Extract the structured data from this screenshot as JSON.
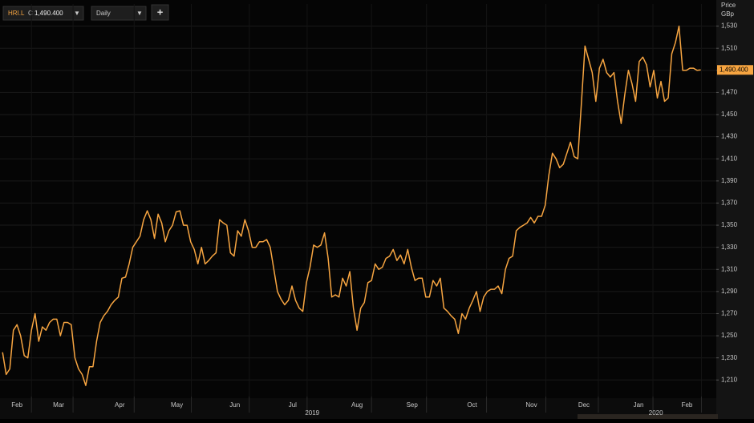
{
  "header": {
    "symbol": "HRI.L",
    "close_prefix": "C",
    "close": "1,490.400",
    "interval": "Daily",
    "add": "+"
  },
  "chart_data": {
    "type": "line",
    "axis_title": [
      "Price",
      "GBp"
    ],
    "color": "#f7a541",
    "values": [
      1235,
      1215,
      1220,
      1255,
      1260,
      1250,
      1232,
      1230,
      1255,
      1270,
      1245,
      1258,
      1255,
      1262,
      1265,
      1265,
      1250,
      1262,
      1262,
      1260,
      1230,
      1220,
      1215,
      1205,
      1222,
      1222,
      1245,
      1262,
      1268,
      1272,
      1278,
      1282,
      1285,
      1302,
      1303,
      1315,
      1330,
      1335,
      1340,
      1355,
      1363,
      1355,
      1338,
      1360,
      1352,
      1335,
      1345,
      1350,
      1362,
      1363,
      1350,
      1350,
      1335,
      1328,
      1315,
      1330,
      1315,
      1318,
      1322,
      1325,
      1355,
      1352,
      1350,
      1325,
      1322,
      1345,
      1340,
      1355,
      1345,
      1330,
      1330,
      1335,
      1335,
      1337,
      1330,
      1310,
      1290,
      1283,
      1278,
      1282,
      1295,
      1282,
      1275,
      1272,
      1298,
      1312,
      1332,
      1330,
      1332,
      1343,
      1320,
      1285,
      1287,
      1285,
      1302,
      1295,
      1308,
      1275,
      1255,
      1275,
      1280,
      1298,
      1300,
      1315,
      1310,
      1312,
      1320,
      1322,
      1328,
      1318,
      1323,
      1315,
      1328,
      1312,
      1300,
      1302,
      1302,
      1285,
      1285,
      1300,
      1295,
      1302,
      1275,
      1272,
      1268,
      1265,
      1252,
      1270,
      1265,
      1275,
      1282,
      1290,
      1272,
      1285,
      1290,
      1292,
      1292,
      1295,
      1288,
      1310,
      1320,
      1322,
      1345,
      1348,
      1350,
      1352,
      1357,
      1352,
      1358,
      1358,
      1368,
      1395,
      1415,
      1410,
      1402,
      1405,
      1415,
      1425,
      1412,
      1410,
      1460,
      1512,
      1500,
      1488,
      1462,
      1492,
      1500,
      1488,
      1484,
      1488,
      1462,
      1442,
      1468,
      1490,
      1478,
      1462,
      1498,
      1502,
      1495,
      1475,
      1490,
      1465,
      1480,
      1462,
      1465,
      1505,
      1515,
      1530,
      1490,
      1490,
      1492,
      1492,
      1490,
      1490.4
    ],
    "xlim": [
      -0.7,
      197.3
    ],
    "xticks": [
      {
        "value": 4,
        "label": "Feb"
      },
      {
        "value": 15.5,
        "label": "Mar"
      },
      {
        "value": 32.4,
        "label": "Apr"
      },
      {
        "value": 48.2,
        "label": "May"
      },
      {
        "value": 64.2,
        "label": "Jun"
      },
      {
        "value": 80.2,
        "label": "Jul"
      },
      {
        "value": 98,
        "label": "Aug"
      },
      {
        "value": 113.2,
        "label": "Sep"
      },
      {
        "value": 129.8,
        "label": "Oct"
      },
      {
        "value": 146.2,
        "label": "Nov"
      },
      {
        "value": 160.7,
        "label": "Dec"
      },
      {
        "value": 175.8,
        "label": "Jan"
      },
      {
        "value": 189.2,
        "label": "Feb"
      }
    ],
    "year_labels": [
      {
        "value": 85.6,
        "label": "2019"
      },
      {
        "value": 180.6,
        "label": "2020"
      }
    ],
    "ylim": [
      1195,
      1550
    ],
    "yticks": [
      {
        "value": 1210,
        "label": "1,210"
      },
      {
        "value": 1230,
        "label": "1,230"
      },
      {
        "value": 1250,
        "label": "1,250"
      },
      {
        "value": 1270,
        "label": "1,270"
      },
      {
        "value": 1290,
        "label": "1,290"
      },
      {
        "value": 1310,
        "label": "1,310"
      },
      {
        "value": 1330,
        "label": "1,330"
      },
      {
        "value": 1350,
        "label": "1,350"
      },
      {
        "value": 1370,
        "label": "1,370"
      },
      {
        "value": 1390,
        "label": "1,390"
      },
      {
        "value": 1410,
        "label": "1,410"
      },
      {
        "value": 1430,
        "label": "1,430"
      },
      {
        "value": 1450,
        "label": "1,450"
      },
      {
        "value": 1470,
        "label": "1,470"
      },
      {
        "value": 1490,
        "label": "1,490"
      },
      {
        "value": 1510,
        "label": "1,510"
      },
      {
        "value": 1530,
        "label": "1,530"
      }
    ],
    "last_label": {
      "value": 1490.4,
      "label": "1,490.400"
    },
    "grid": true
  }
}
